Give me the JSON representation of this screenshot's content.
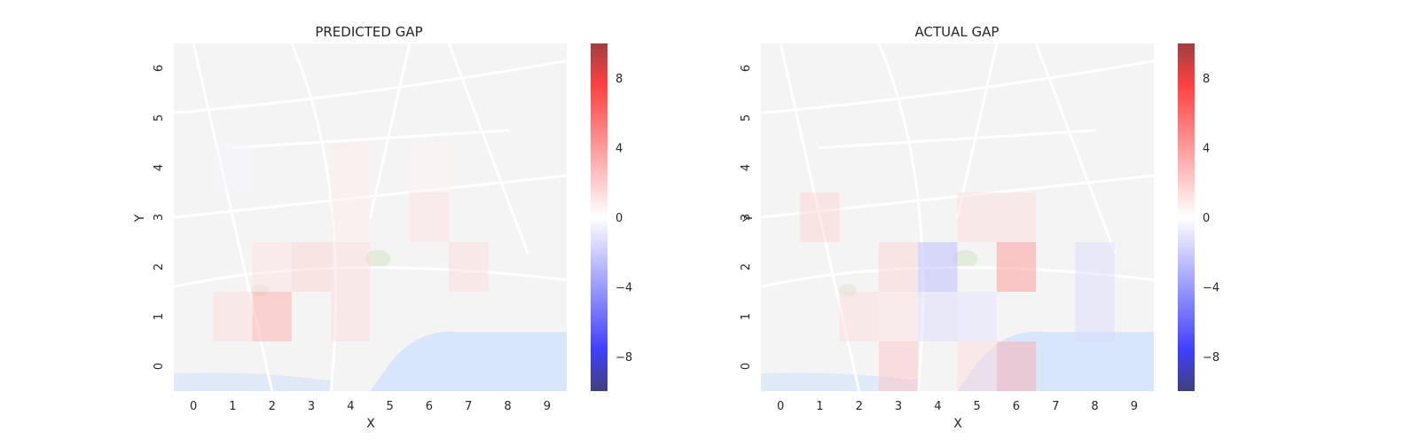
{
  "chart_data": [
    {
      "type": "heatmap",
      "title": "PREDICTED GAP",
      "xlabel": "X",
      "ylabel": "Y",
      "x": [
        0,
        1,
        2,
        3,
        4,
        5,
        6,
        7,
        8,
        9
      ],
      "y": [
        0,
        1,
        2,
        3,
        4,
        5,
        6
      ],
      "background": "map of Porto (street map)",
      "cells": [
        {
          "x": 1,
          "y": 1,
          "value": 1.5
        },
        {
          "x": 2,
          "y": 1,
          "value": 3.5
        },
        {
          "x": 4,
          "y": 1,
          "value": 1.5
        },
        {
          "x": 2,
          "y": 2,
          "value": 1.2
        },
        {
          "x": 3,
          "y": 2,
          "value": 1.8
        },
        {
          "x": 4,
          "y": 2,
          "value": 1.5
        },
        {
          "x": 7,
          "y": 2,
          "value": 1.5
        },
        {
          "x": 6,
          "y": 3,
          "value": 1.2
        },
        {
          "x": 4,
          "y": 3,
          "value": 0.8
        },
        {
          "x": 4,
          "y": 4,
          "value": 0.8
        },
        {
          "x": 6,
          "y": 4,
          "value": 0.5
        },
        {
          "x": 1,
          "y": 4,
          "value": -0.3
        }
      ],
      "colorbar": {
        "min": -10,
        "max": 10,
        "ticks": [
          -8,
          -4,
          0,
          4,
          8
        ]
      }
    },
    {
      "type": "heatmap",
      "title": "ACTUAL GAP",
      "xlabel": "X",
      "ylabel": "Y",
      "x": [
        0,
        1,
        2,
        3,
        4,
        5,
        6,
        7,
        8,
        9
      ],
      "y": [
        0,
        1,
        2,
        3,
        4,
        5,
        6
      ],
      "background": "map of Porto (street map)",
      "cells": [
        {
          "x": 1,
          "y": 3,
          "value": 1.8
        },
        {
          "x": 5,
          "y": 3,
          "value": 1.5
        },
        {
          "x": 6,
          "y": 3,
          "value": 1.5
        },
        {
          "x": 3,
          "y": 2,
          "value": 1.8
        },
        {
          "x": 4,
          "y": 2,
          "value": -3.0
        },
        {
          "x": 6,
          "y": 2,
          "value": 4.5
        },
        {
          "x": 8,
          "y": 2,
          "value": -1.5
        },
        {
          "x": 2,
          "y": 1,
          "value": 1.5
        },
        {
          "x": 3,
          "y": 1,
          "value": 1.2
        },
        {
          "x": 4,
          "y": 1,
          "value": -1.5
        },
        {
          "x": 5,
          "y": 1,
          "value": -1.2
        },
        {
          "x": 8,
          "y": 1,
          "value": -1.5
        },
        {
          "x": 3,
          "y": 0,
          "value": 2.5
        },
        {
          "x": 5,
          "y": 0,
          "value": 1.5
        },
        {
          "x": 6,
          "y": 0,
          "value": 3.5
        }
      ],
      "colorbar": {
        "min": -10,
        "max": 10,
        "ticks": [
          -8,
          -4,
          0,
          4,
          8
        ]
      }
    }
  ]
}
